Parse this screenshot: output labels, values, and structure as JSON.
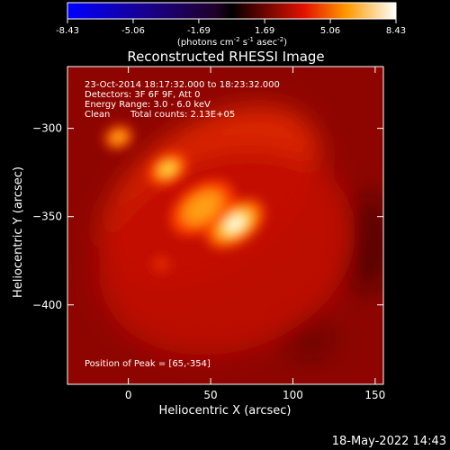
{
  "colorbar": {
    "ticks": [
      "-8.43",
      "-5.06",
      "-1.69",
      "1.69",
      "5.06",
      "8.43"
    ],
    "tick_values": [
      -8.43,
      -5.06,
      -1.69,
      1.69,
      5.06,
      8.43
    ],
    "range": [
      -8.43,
      8.43
    ],
    "units_prefix": "(photons cm",
    "units_exp1": "-2",
    "units_mid": " s",
    "units_exp2": "-1",
    "units_mid2": " asec",
    "units_exp3": "-2",
    "units_suffix": ")"
  },
  "title": "Reconstructed RHESSI Image",
  "info": {
    "time_range": "23-Oct-2014 18:17:32.000 to 18:23:32.000",
    "detectors": "Detectors: 3F 6F 9F, Att 0",
    "energy": "Energy Range: 3.0 - 6.0 keV",
    "clean": "Clean",
    "total_counts": "Total counts: 2.13E+05",
    "peak": "Position of Peak = [65,-354]"
  },
  "axes": {
    "xlabel": "Heliocentric X (arcsec)",
    "ylabel": "Heliocentric Y (arcsec)",
    "x_range": [
      -37,
      155
    ],
    "y_range": [
      -445,
      -265
    ],
    "x_ticks": [
      0,
      50,
      100,
      150
    ],
    "x_tick_labels": [
      "0",
      "50",
      "100",
      "150"
    ],
    "y_ticks": [
      -300,
      -350,
      -400
    ],
    "y_tick_labels": [
      "−300",
      "−350",
      "−400"
    ]
  },
  "footer_date": "18-May-2022 14:43",
  "image_sources": [
    {
      "x": 65,
      "y": -354,
      "rx": 20,
      "ry": 12,
      "angle": -35,
      "intensity": 1.0
    },
    {
      "x": 45,
      "y": -345,
      "rx": 22,
      "ry": 14,
      "angle": -35,
      "intensity": 0.55
    },
    {
      "x": 24,
      "y": -323,
      "rx": 13,
      "ry": 9,
      "angle": -30,
      "intensity": 0.72
    },
    {
      "x": -6,
      "y": -305,
      "rx": 9,
      "ry": 7,
      "angle": -20,
      "intensity": 0.62
    },
    {
      "x": 20,
      "y": -377,
      "rx": 6,
      "ry": 5,
      "angle": 0,
      "intensity": 0.3
    },
    {
      "x": 50,
      "y": -340,
      "rx": 75,
      "ry": 45,
      "angle": -35,
      "intensity": 0.32
    },
    {
      "x": 60,
      "y": -370,
      "rx": 80,
      "ry": 60,
      "angle": -20,
      "intensity": 0.22
    }
  ],
  "dark_regions": [
    {
      "x": 145,
      "y": -365,
      "rx": 14,
      "ry": 30,
      "angle": 0,
      "intensity": 0.5
    },
    {
      "x": 110,
      "y": -420,
      "rx": 15,
      "ry": 12,
      "angle": 0,
      "intensity": 0.3
    }
  ]
}
